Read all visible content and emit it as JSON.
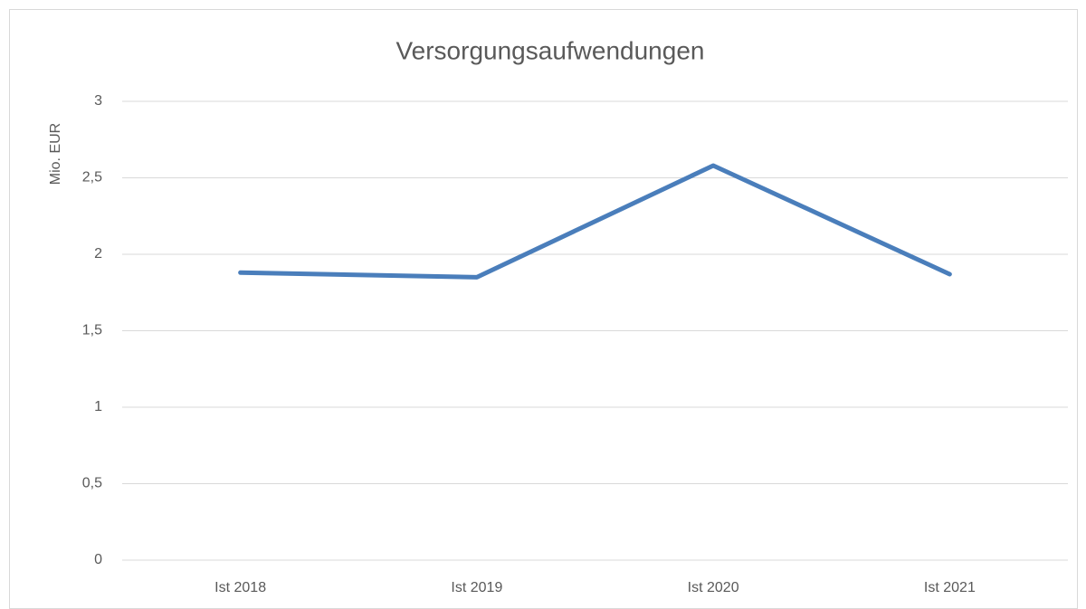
{
  "chart_data": {
    "type": "line",
    "title": "Versorgungsaufwendungen",
    "y_label": "Mio. EUR",
    "categories": [
      "Ist 2018",
      "Ist 2019",
      "Ist 2020",
      "Ist 2021"
    ],
    "series": [
      {
        "name": "Versorgungsaufwendungen",
        "color": "#4a7ebb",
        "values": [
          1.88,
          1.85,
          2.58,
          1.87
        ]
      }
    ],
    "ylim": [
      0,
      3
    ],
    "yticks": [
      0,
      {
        "value": 0.5,
        "label": "0,5"
      },
      1,
      {
        "value": 1.5,
        "label": "1,5"
      },
      2,
      {
        "value": 2.5,
        "label": "2,5"
      },
      3
    ],
    "grid": true
  }
}
